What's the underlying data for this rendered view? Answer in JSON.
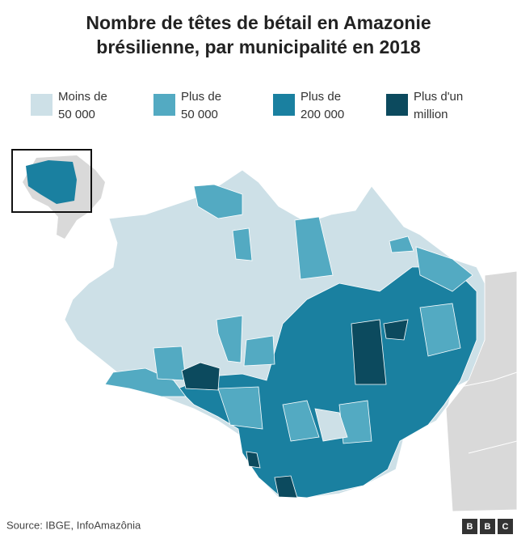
{
  "title": [
    "Nombre de têtes de bétail en Amazonie",
    "brésilienne, par municipalité en 2018"
  ],
  "legend": [
    {
      "label": [
        "Moins de",
        "50 000"
      ],
      "color": "#cde0e7"
    },
    {
      "label": [
        "Plus de",
        "50 000"
      ],
      "color": "#53aac2"
    },
    {
      "label": [
        "Plus de",
        "200 000"
      ],
      "color": "#1a80a0"
    },
    {
      "label": [
        "Plus d'un",
        "million"
      ],
      "color": "#0c4a5e"
    }
  ],
  "source": "Source: IBGE, InfoAmazônia",
  "logo": [
    "B",
    "B",
    "C"
  ]
}
